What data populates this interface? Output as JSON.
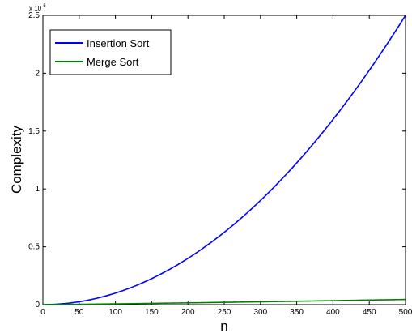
{
  "chart_data": {
    "type": "line",
    "xlabel": "n",
    "ylabel": "Complexity",
    "xlim": [
      0,
      500
    ],
    "ylim": [
      0,
      250000
    ],
    "x_ticks": [
      0,
      50,
      100,
      150,
      200,
      250,
      300,
      350,
      400,
      450,
      500
    ],
    "x_tick_labels": [
      "0",
      "50",
      "100",
      "150",
      "200",
      "250",
      "300",
      "350",
      "400",
      "450",
      "500"
    ],
    "y_ticks": [
      0,
      50000,
      100000,
      150000,
      200000,
      250000
    ],
    "y_tick_labels": [
      "0",
      "0.5",
      "1",
      "1.5",
      "2",
      "2.5"
    ],
    "y_exponent_base": "x 10",
    "y_exponent_power": "5",
    "grid": false,
    "legend_position": "top-left",
    "series": [
      {
        "name": "Insertion Sort",
        "color": "#0000ff",
        "x": [
          0,
          50,
          100,
          150,
          200,
          250,
          300,
          350,
          400,
          450,
          500
        ],
        "y": [
          0,
          2500,
          10000,
          22500,
          40000,
          62500,
          90000,
          122500,
          160000,
          202500,
          250000
        ]
      },
      {
        "name": "Merge Sort",
        "color": "#008000",
        "x": [
          0,
          50,
          100,
          150,
          200,
          250,
          300,
          350,
          400,
          450,
          500
        ],
        "y": [
          0,
          282,
          664,
          1084,
          1529,
          1991,
          2469,
          2958,
          3458,
          3967,
          4483
        ]
      }
    ]
  }
}
